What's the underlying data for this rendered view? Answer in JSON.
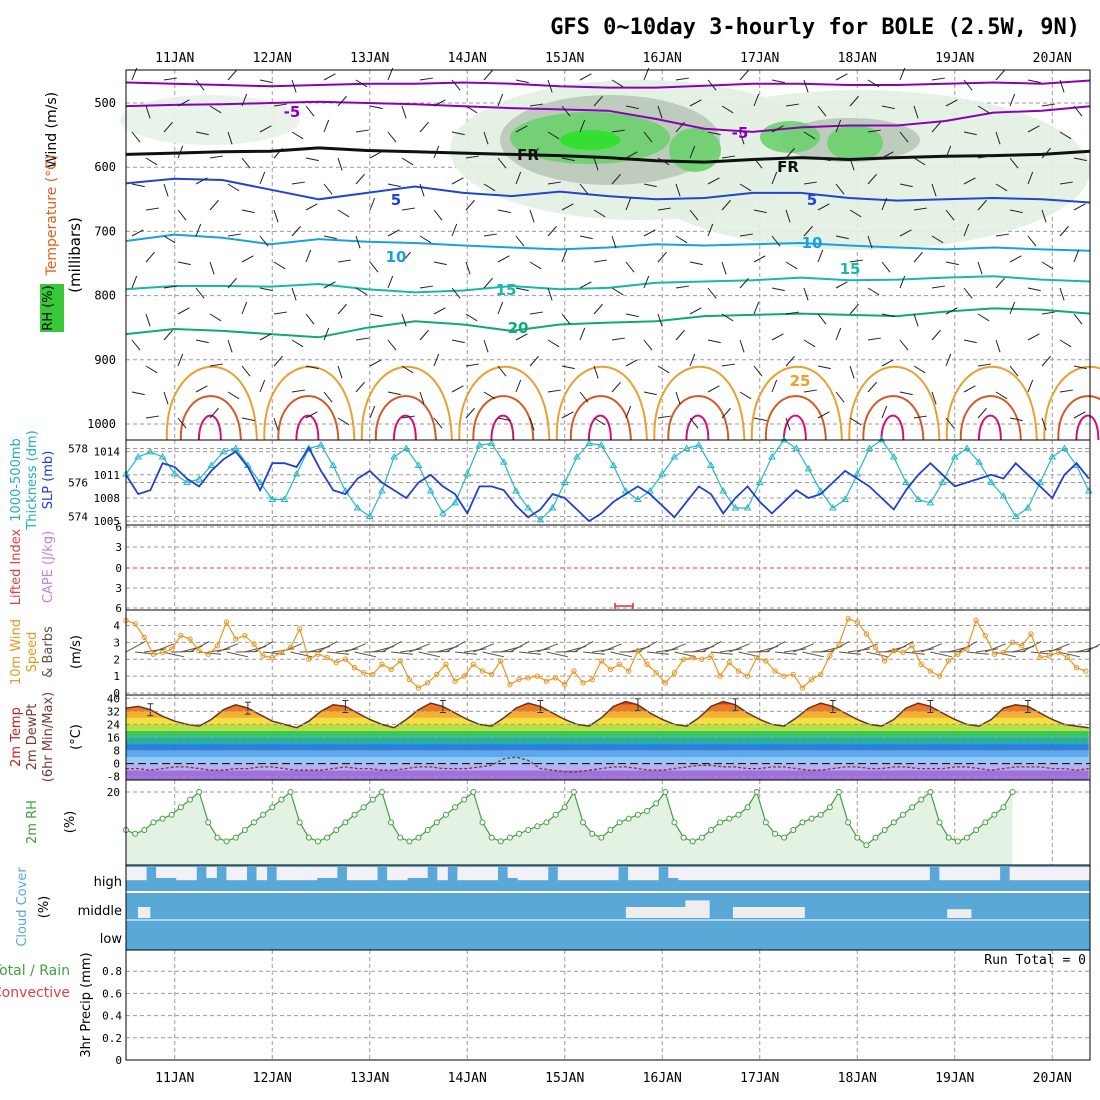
{
  "title": "GFS 0~10day 3-hourly for BOLE (2.5W, 9N)",
  "dates": [
    "11JAN",
    "12JAN",
    "13JAN",
    "14JAN",
    "15JAN",
    "16JAN",
    "17JAN",
    "18JAN",
    "19JAN",
    "20JAN"
  ],
  "colors": {
    "t_neg": "#8a00b8",
    "t_5": "#2046d0",
    "t_10": "#1aa0e0",
    "t_15": "#18b8a8",
    "t_20": "#10a878",
    "t_25": "#e8a030",
    "t_30": "#d05a28",
    "t_35": "#d0107a",
    "fr": "#101010",
    "rh": "#30c030",
    "thick": "#20b8c8",
    "slp": "#2040d0",
    "wind": "#e89820",
    "temp": "#cc2020",
    "rh2": "#40a040",
    "cloud": "#5aa8d8",
    "barb": "#605040"
  },
  "panel_labels": {
    "p1_wind": "Wind (m/s)",
    "p1_temp": "Temperature (°C)",
    "p1_rh": "RH (%)",
    "p1_mb": "(millibars)",
    "p2_thk": "1000-500mb",
    "p2_thk2": "Thickness (dm)",
    "p2_slp": "SLP (mb)",
    "p3_li": "Lifted Index",
    "p3_cape": "CAPE (J/kg)",
    "p4_wind": "10m Wind",
    "p4_speed": "Speed",
    "p4_barbs": "& Barbs",
    "p4_unit": "(m/s)",
    "p5_temp": "2m Temp",
    "p5_dew": "2m DewPt",
    "p5_minmax": "(6hr Min/Max)",
    "p5_unit": "(°C)",
    "p6_rh": "2m RH",
    "p6_unit": "(%)",
    "p7_cloud": "Cloud Cover",
    "p7_unit": "(%)",
    "p8_total": "Total / Rain",
    "p8_conv": "Convective",
    "p8_precip": "3hr Precip (mm)",
    "run_total": "Run Total = 0"
  },
  "chart_data": [
    {
      "type": "contour",
      "name": "upper-air time-height section",
      "y_axis": {
        "label": "millibars",
        "ticks": [
          500,
          600,
          700,
          800,
          900,
          1000
        ],
        "range": [
          450,
          1000
        ]
      },
      "isotherm_labels": [
        "-5",
        "-5",
        "FR",
        "FR",
        "5",
        "5",
        "10",
        "10",
        "15",
        "15",
        "20",
        "25"
      ],
      "isotherms": [
        {
          "t": "-5",
          "color_key": "t_neg",
          "p": [
            505,
            503,
            502,
            500,
            498,
            500,
            502,
            505,
            508,
            510,
            512,
            525,
            540,
            545,
            538,
            535,
            535,
            528,
            515,
            512,
            505
          ]
        },
        {
          "t": "-5b",
          "color_key": "t_neg",
          "p": [
            468,
            470,
            472,
            474,
            472,
            470,
            470,
            468,
            470,
            474,
            476,
            476,
            473,
            470,
            470,
            472,
            472,
            470,
            468,
            470,
            465
          ]
        },
        {
          "t": "FR",
          "color_key": "fr",
          "p": [
            580,
            578,
            576,
            575,
            570,
            574,
            576,
            578,
            580,
            582,
            585,
            590,
            592,
            588,
            585,
            588,
            585,
            583,
            582,
            580,
            575
          ]
        },
        {
          "t": "5",
          "color_key": "t_5",
          "p": [
            625,
            618,
            620,
            635,
            650,
            640,
            630,
            640,
            645,
            638,
            645,
            650,
            648,
            640,
            640,
            648,
            652,
            650,
            648,
            650,
            655
          ]
        },
        {
          "t": "10",
          "color_key": "t_10",
          "p": [
            715,
            705,
            710,
            720,
            712,
            716,
            718,
            722,
            725,
            728,
            725,
            720,
            722,
            720,
            718,
            722,
            725,
            728,
            725,
            728,
            730
          ]
        },
        {
          "t": "15",
          "color_key": "t_15",
          "p": [
            790,
            785,
            785,
            786,
            782,
            790,
            795,
            792,
            785,
            790,
            788,
            780,
            778,
            776,
            772,
            776,
            775,
            772,
            770,
            775,
            778
          ]
        },
        {
          "t": "20",
          "color_key": "t_20",
          "p": [
            860,
            852,
            855,
            860,
            865,
            850,
            840,
            845,
            855,
            845,
            842,
            840,
            832,
            830,
            828,
            830,
            832,
            825,
            820,
            822,
            828
          ]
        }
      ],
      "rh_shading_levels": [
        30,
        50,
        70,
        90
      ]
    },
    {
      "type": "line",
      "name": "thickness and SLP",
      "x_start_day": 10.5,
      "step_hours": 3,
      "series": [
        {
          "name": "1000-500mb Thickness (dm)",
          "color_key": "thick",
          "y_axis": "left",
          "ylim": [
            573.5,
            578.5
          ],
          "yticks": [
            574,
            576,
            578
          ],
          "values": [
            576.5,
            577.5,
            577.8,
            577.5,
            576.5,
            576.0,
            576.2,
            577.0,
            577.8,
            578.0,
            577.0,
            576.0,
            575.0,
            575.0,
            576.5,
            578.0,
            578.2,
            577.0,
            575.5,
            574.5,
            574.0,
            575.5,
            577.5,
            578.0,
            577.0,
            575.5,
            574.2,
            574.8,
            576.5,
            578.2,
            578.3,
            577.2,
            575.5,
            574.5,
            573.8,
            574.5,
            576.0,
            577.5,
            578.3,
            578.2,
            577.0,
            575.5,
            575.0,
            575.5,
            576.5,
            577.5,
            578.0,
            578.2,
            577.0,
            575.5,
            574.5,
            574.5,
            576.0,
            577.5,
            578.5,
            578.0,
            576.8,
            575.5,
            574.5,
            575.0,
            576.5,
            578.0,
            578.5,
            577.5,
            576.0,
            575.0,
            574.8,
            576.0,
            577.5,
            578.0,
            577.2,
            576.0,
            575.2,
            574.0,
            574.5,
            576.0,
            577.5,
            578.0,
            577.0,
            575.5,
            574.0
          ]
        },
        {
          "name": "SLP (mb)",
          "color_key": "slp",
          "y_axis": "right",
          "ylim": [
            1004.5,
            1015.5
          ],
          "yticks": [
            1005,
            1008,
            1011,
            1014
          ],
          "values": [
            1011.0,
            1008.5,
            1009.0,
            1012.5,
            1012.0,
            1010.5,
            1009.5,
            1011.5,
            1013.0,
            1014.0,
            1012.0,
            1009.0,
            1012.5,
            1012.5,
            1012.0,
            1014.5,
            1011.5,
            1009.0,
            1008.5,
            1010.5,
            1011.5,
            1010.0,
            1009.0,
            1008.0,
            1010.0,
            1011.0,
            1009.5,
            1008.5,
            1006.0,
            1009.5,
            1009.5,
            1009.0,
            1007.0,
            1005.5,
            1006.5,
            1008.5,
            1008.0,
            1006.5,
            1005.0,
            1006.0,
            1007.5,
            1008.5,
            1009.5,
            1008.5,
            1007.0,
            1005.5,
            1007.5,
            1009.5,
            1008.5,
            1006.0,
            1008.0,
            1009.5,
            1007.5,
            1006.0,
            1007.5,
            1009.0,
            1008.0,
            1008.5,
            1010.0,
            1011.5,
            1010.5,
            1009.5,
            1008.0,
            1006.5,
            1009.0,
            1011.0,
            1012.5,
            1011.0,
            1009.5,
            1010.0,
            1010.5,
            1011.0,
            1010.5,
            1012.5,
            1011.0,
            1009.5,
            1008.0,
            1011.0,
            1012.5,
            1010.5,
            1009.0
          ]
        }
      ]
    },
    {
      "type": "line",
      "name": "lifted index / CAPE",
      "yticks": [
        "-6",
        "-3",
        "0",
        "3",
        "6"
      ],
      "series": [
        {
          "name": "Lifted Index",
          "values": []
        }
      ]
    },
    {
      "type": "line",
      "name": "10m wind speed",
      "ylim": [
        0,
        4.8
      ],
      "yticks": [
        0,
        1,
        2,
        3,
        4
      ],
      "x_start_day": 10.5,
      "step_hours": 3,
      "values": [
        4.3,
        4.1,
        3.3,
        2.3,
        2.4,
        2.6,
        3.4,
        3.2,
        2.5,
        2.3,
        2.8,
        4.2,
        3.2,
        3.4,
        2.9,
        2.2,
        2.1,
        2.4,
        2.7,
        3.8,
        2.0,
        2.3,
        2.1,
        1.8,
        2.0,
        1.5,
        1.2,
        1.1,
        1.7,
        1.4,
        1.9,
        0.8,
        0.3,
        0.6,
        1.1,
        1.7,
        0.7,
        1.0,
        1.7,
        1.3,
        1.1,
        1.9,
        0.5,
        0.8,
        0.9,
        1.0,
        0.7,
        0.9,
        0.5,
        1.3,
        0.6,
        0.8,
        1.9,
        1.4,
        1.7,
        1.3,
        2.5,
        1.7,
        1.2,
        0.6,
        1.2,
        2.0,
        2.1,
        2.0,
        2.2,
        1.0,
        1.8,
        1.3,
        1.0,
        2.1,
        1.9,
        1.3,
        1.0,
        1.1,
        0.3,
        0.8,
        1.1,
        2.2,
        2.9,
        4.4,
        4.2,
        3.5,
        2.7,
        1.9,
        2.5,
        2.4,
        2.8,
        1.7,
        1.3,
        1.0,
        1.9,
        2.3,
        2.6,
        4.3,
        3.4,
        2.3,
        2.4,
        3.0,
        2.8,
        3.5,
        2.1,
        2.2,
        2.4,
        2.1,
        1.5,
        1.3,
        2.9,
        1.2,
        0.5,
        1.5
      ]
    },
    {
      "type": "area",
      "name": "2m temperature",
      "ylim": [
        -10,
        42
      ],
      "yticks": [
        -8,
        0,
        8,
        16,
        24,
        32,
        40
      ],
      "x_start_day": 10.5,
      "step_hours": 3,
      "series": [
        {
          "name": "2m Temp",
          "values": [
            34,
            35,
            33,
            29,
            26,
            24,
            23,
            27,
            33,
            36,
            34,
            30,
            26,
            24,
            22,
            26,
            32,
            36,
            35,
            31,
            27,
            24,
            22,
            27,
            33,
            37,
            35,
            31,
            27,
            24,
            23,
            28,
            34,
            37,
            35,
            31,
            27,
            24,
            23,
            28,
            35,
            38,
            36,
            31,
            27,
            24,
            23,
            28,
            35,
            38,
            36,
            31,
            27,
            24,
            23,
            28,
            34,
            37,
            35,
            31,
            27,
            24,
            23,
            27,
            34,
            37,
            35,
            31,
            27,
            24,
            23,
            27,
            34,
            36,
            35,
            31,
            27,
            24,
            23,
            22,
            24
          ]
        },
        {
          "name": "2m DewPt",
          "values": [
            -3,
            -3,
            -4,
            -3,
            -2,
            -2,
            -3,
            -4,
            -4,
            -3,
            -3,
            -2,
            -2,
            -3,
            -4,
            -4,
            -4,
            -3,
            -2,
            -3,
            -3,
            -4,
            -4,
            -3,
            -2,
            -2,
            -3,
            -3,
            -3,
            -2,
            -1,
            3,
            4,
            2,
            -3,
            -4,
            -5,
            -5,
            -4,
            -3,
            -2,
            -2,
            -3,
            -4,
            -4,
            -3,
            -2,
            -1,
            -1,
            -2,
            -2,
            -3,
            -3,
            -2,
            -2,
            -3,
            -4,
            -4,
            -3,
            -2,
            -2,
            -3,
            -3,
            -2,
            -2,
            -3,
            -3,
            -3,
            -2,
            -2,
            -3,
            -4,
            -3,
            -2,
            -2,
            -2,
            -3,
            -3,
            -4,
            -3,
            -3
          ]
        }
      ]
    },
    {
      "type": "line",
      "name": "2m relative humidity",
      "ylim": [
        0,
        22
      ],
      "yticks": [
        20
      ],
      "x_start_day": 10.5,
      "step_hours": 3,
      "values": [
        10,
        9,
        10,
        12,
        13,
        14,
        16,
        18,
        20,
        12,
        8,
        7,
        8,
        10,
        12,
        14,
        16,
        18,
        20,
        12,
        8,
        7,
        8,
        10,
        12,
        14,
        16,
        18,
        20,
        12,
        8,
        7,
        8,
        10,
        12,
        14,
        16,
        18,
        20,
        12,
        8,
        7,
        8,
        9,
        10,
        11,
        12,
        14,
        16,
        20,
        12,
        9,
        8,
        10,
        12,
        13,
        14,
        15,
        17,
        20,
        12,
        8,
        7,
        8,
        10,
        12,
        13,
        14,
        16,
        20,
        12,
        9,
        8,
        10,
        12,
        13,
        14,
        16,
        20,
        12,
        8,
        6,
        8,
        10,
        12,
        14,
        16,
        18,
        20,
        12,
        8,
        7,
        8,
        10,
        12,
        14,
        16,
        20
      ]
    },
    {
      "type": "bar",
      "name": "cloud cover",
      "rows": [
        "high",
        "middle",
        "low"
      ],
      "x_start_day": 10.5,
      "step_hours": 3,
      "high_free_fraction": [
        0.6,
        0.6,
        0.0,
        0.5,
        0.5,
        0.6,
        0.6,
        0.0,
        0.5,
        0.0,
        0.6,
        0.6,
        0.0,
        0.6,
        0.0,
        0.6,
        0.6,
        0.6,
        0.6,
        0.5,
        0.5,
        0.0,
        0.6,
        0.6,
        0.6,
        0.0,
        0.6,
        0.6,
        0.5,
        0.5,
        0.0,
        0.6,
        0.0,
        0.6,
        0.6,
        0.6,
        0.6,
        0.0,
        0.5,
        0.6,
        0.6,
        0.6,
        0.0,
        0.6,
        0.6,
        0.6,
        0.6,
        0.6,
        0.6,
        0.0,
        0.6,
        0.6,
        0.6,
        0.0,
        0.5,
        0.6,
        0.6,
        0.6,
        0.6,
        0.6,
        0.6,
        0.6,
        0.6,
        0.6,
        0.6,
        0.6,
        0.6,
        0.6,
        0.6,
        0.6,
        0.6,
        0.6,
        0.6,
        0.6,
        0.6,
        0.6,
        0.6,
        0.6,
        0.6,
        0.6,
        0.0,
        0.6,
        0.6,
        0.6,
        0.6,
        0.6,
        0.6,
        0.0,
        0.6,
        0.6,
        0.6,
        0.6,
        0.6,
        0.6,
        0.6,
        0.6
      ],
      "middle_free_fraction": [
        0.0,
        0.5,
        0.0,
        0.0,
        0.0,
        0.0,
        0.0,
        0.0,
        0.0,
        0.0,
        0.0,
        0.0,
        0.0,
        0.0,
        0.0,
        0.0,
        0.0,
        0.0,
        0.0,
        0.0,
        0.0,
        0.0,
        0.0,
        0.0,
        0.0,
        0.0,
        0.0,
        0.0,
        0.0,
        0.0,
        0.0,
        0.0,
        0.0,
        0.0,
        0.0,
        0.0,
        0.0,
        0.0,
        0.0,
        0.0,
        0.0,
        0.0,
        0.5,
        0.5,
        0.5,
        0.5,
        0.5,
        0.8,
        0.8,
        0.0,
        0.0,
        0.5,
        0.5,
        0.5,
        0.5,
        0.5,
        0.5,
        0.0,
        0.0,
        0.0,
        0.0,
        0.0,
        0.0,
        0.0,
        0.0,
        0.0,
        0.0,
        0.0,
        0.0,
        0.4,
        0.4,
        0.0,
        0.0,
        0.0,
        0.0,
        0.0,
        0.0,
        0.0,
        0.0,
        0.0,
        0.0
      ]
    },
    {
      "type": "bar",
      "name": "3hr precipitation",
      "ylim": [
        0,
        1.0
      ],
      "yticks": [
        0,
        0.2,
        0.4,
        0.6,
        0.8
      ],
      "values": []
    }
  ]
}
